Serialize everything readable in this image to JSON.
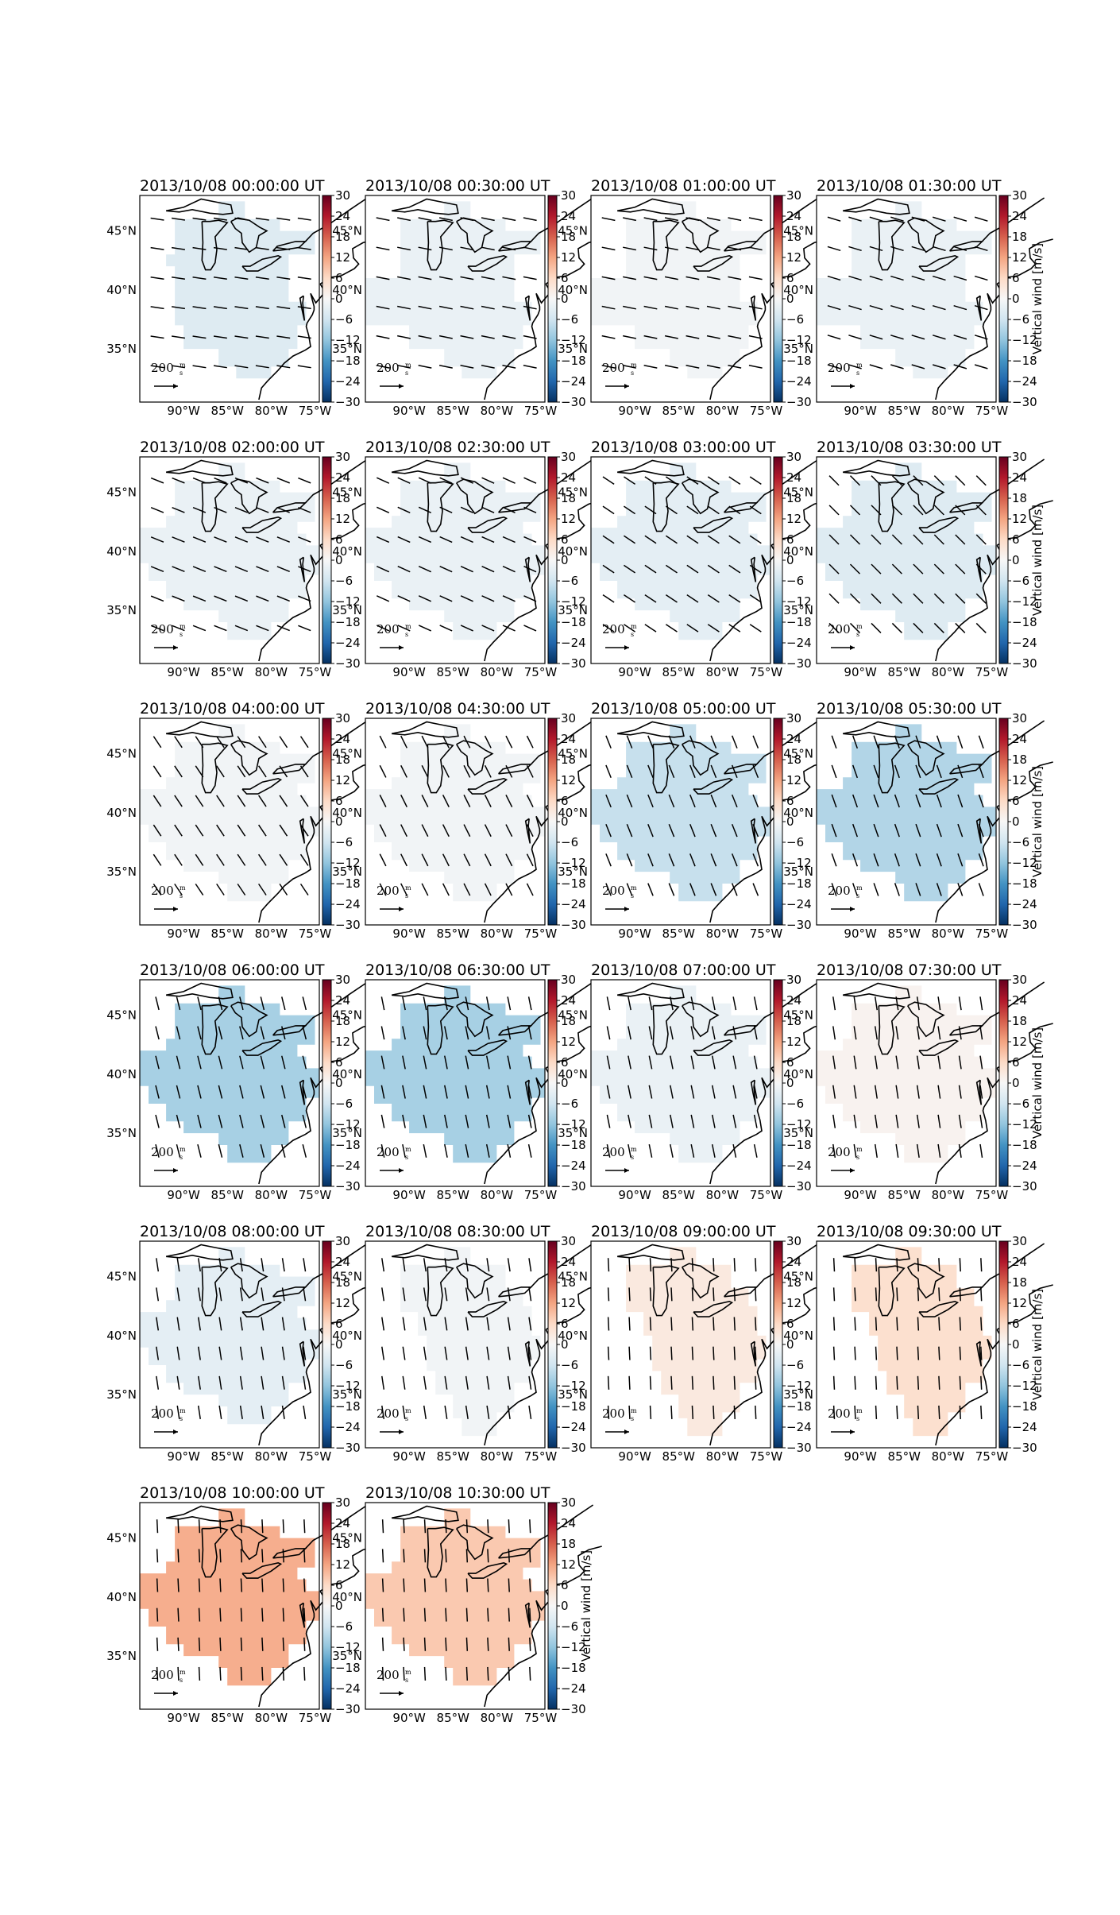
{
  "figure": {
    "colorbar_label": "Vertical wind [m/s]",
    "colorbar_ticks": [
      "30",
      "24",
      "18",
      "12",
      "6",
      "0",
      "−6",
      "−12",
      "−18",
      "−24",
      "−30"
    ],
    "lon_ticks": [
      "90°W",
      "85°W",
      "80°W",
      "75°W"
    ],
    "lat_ticks": [
      "45°N",
      "40°N",
      "35°N"
    ],
    "scale_label": "200",
    "scale_unit_num": "m",
    "scale_unit_den": "s",
    "colormap": "RdBu_r",
    "value_range": [
      -30,
      30
    ]
  },
  "panels": [
    {
      "title": "2013/10/08 00:00:00 UT",
      "value": -4,
      "arrow": [
        1.0,
        0.15
      ],
      "extent": 0,
      "show_label": false
    },
    {
      "title": "2013/10/08 00:30:00 UT",
      "value": -2,
      "arrow": [
        1.0,
        0.2
      ],
      "extent": 1,
      "show_label": false
    },
    {
      "title": "2013/10/08 01:00:00 UT",
      "value": -1,
      "arrow": [
        1.0,
        0.2
      ],
      "extent": 1,
      "show_label": false
    },
    {
      "title": "2013/10/08 01:30:00 UT",
      "value": -2,
      "arrow": [
        1.0,
        0.3
      ],
      "extent": 1,
      "show_label": true
    },
    {
      "title": "2013/10/08 02:00:00 UT",
      "value": -2,
      "arrow": [
        1.0,
        0.4
      ],
      "extent": 2,
      "show_label": false
    },
    {
      "title": "2013/10/08 02:30:00 UT",
      "value": -2,
      "arrow": [
        1.0,
        0.45
      ],
      "extent": 2,
      "show_label": false
    },
    {
      "title": "2013/10/08 03:00:00 UT",
      "value": -3,
      "arrow": [
        0.9,
        0.6
      ],
      "extent": 2,
      "show_label": false
    },
    {
      "title": "2013/10/08 03:30:00 UT",
      "value": -4,
      "arrow": [
        0.8,
        0.8
      ],
      "extent": 2,
      "show_label": true
    },
    {
      "title": "2013/10/08 04:00:00 UT",
      "value": -1,
      "arrow": [
        0.6,
        0.9
      ],
      "extent": 2,
      "show_label": false
    },
    {
      "title": "2013/10/08 04:30:00 UT",
      "value": -1,
      "arrow": [
        0.5,
        1.0
      ],
      "extent": 2,
      "show_label": false
    },
    {
      "title": "2013/10/08 05:00:00 UT",
      "value": -7,
      "arrow": [
        0.4,
        1.0
      ],
      "extent": 2,
      "show_label": false
    },
    {
      "title": "2013/10/08 05:30:00 UT",
      "value": -9,
      "arrow": [
        0.35,
        1.0
      ],
      "extent": 2,
      "show_label": true
    },
    {
      "title": "2013/10/08 06:00:00 UT",
      "value": -10,
      "arrow": [
        0.25,
        1.0
      ],
      "extent": 2,
      "show_label": false
    },
    {
      "title": "2013/10/08 06:30:00 UT",
      "value": -10,
      "arrow": [
        0.2,
        1.0
      ],
      "extent": 2,
      "show_label": false
    },
    {
      "title": "2013/10/08 07:00:00 UT",
      "value": -2,
      "arrow": [
        0.2,
        1.0
      ],
      "extent": 2,
      "show_label": false
    },
    {
      "title": "2013/10/08 07:30:00 UT",
      "value": 1,
      "arrow": [
        0.15,
        1.0
      ],
      "extent": 2,
      "show_label": true
    },
    {
      "title": "2013/10/08 08:00:00 UT",
      "value": -3,
      "arrow": [
        0.15,
        1.0
      ],
      "extent": 2,
      "show_label": false
    },
    {
      "title": "2013/10/08 08:30:00 UT",
      "value": -1,
      "arrow": [
        0.15,
        1.0
      ],
      "extent": 3,
      "show_label": false
    },
    {
      "title": "2013/10/08 09:00:00 UT",
      "value": 3,
      "arrow": [
        0.05,
        1.0
      ],
      "extent": 3,
      "show_label": false
    },
    {
      "title": "2013/10/08 09:30:00 UT",
      "value": 5,
      "arrow": [
        0.05,
        1.0
      ],
      "extent": 3,
      "show_label": true
    },
    {
      "title": "2013/10/08 10:00:00 UT",
      "value": 11,
      "arrow": [
        0.05,
        1.0
      ],
      "extent": 2,
      "show_label": false
    },
    {
      "title": "2013/10/08 10:30:00 UT",
      "value": 8,
      "arrow": [
        0.05,
        1.0
      ],
      "extent": 2,
      "show_label": true
    }
  ]
}
